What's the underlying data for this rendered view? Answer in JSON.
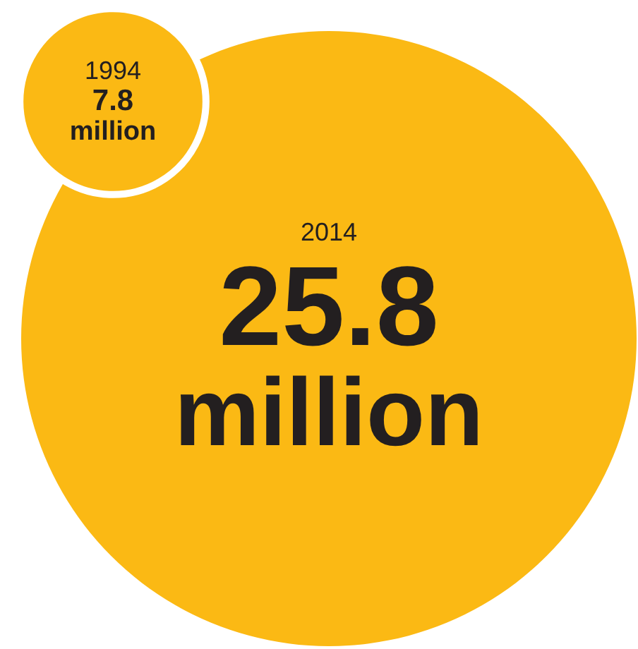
{
  "chart_data": {
    "type": "other",
    "categories": [
      "1994",
      "2014"
    ],
    "values": [
      7.8,
      25.8
    ],
    "value_labels": [
      "7.8 million",
      "25.8 million"
    ],
    "color": "#fbb914"
  }
}
